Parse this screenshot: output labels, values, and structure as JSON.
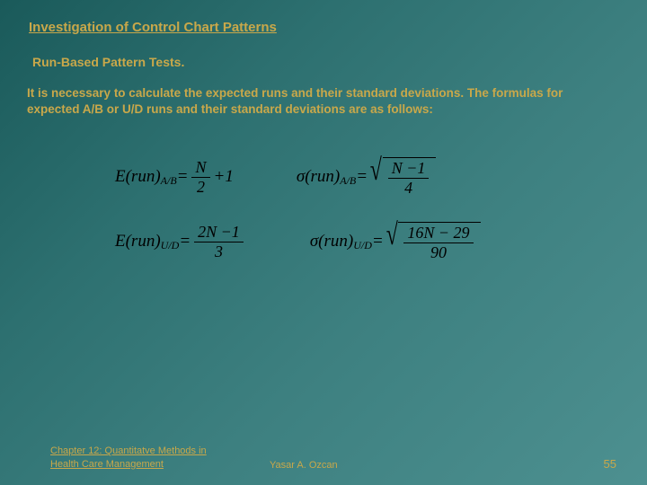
{
  "title": "Investigation of Control Chart Patterns",
  "subtitle": "Run-Based Pattern Tests.",
  "body": "It is necessary to calculate the expected runs and their standard deviations.  The formulas for expected A/B or U/D runs and their standard deviations are as follows:",
  "formulas": {
    "erun_ab_lhs": "E(run)",
    "sub_ab": "A/B",
    "eq": " = ",
    "N": "N",
    "two": "2",
    "plus1": " +1",
    "sigma_run": "σ(run)",
    "nminus1": "N −1",
    "four": "4",
    "erun_ud_lhs": "E(run)",
    "sub_ud": "U/D",
    "twoN_1": "2N −1",
    "three": "3",
    "sixteenN_29": "16N − 29",
    "ninety": "90"
  },
  "footer": {
    "chapter": "Chapter 12: Quantitatve Methods in Health Care Management",
    "author": "Yasar A. Ozcan",
    "page": "55"
  },
  "colors": {
    "accent": "#c9a84a",
    "bg_start": "#1a5a5a",
    "bg_end": "#4d9090"
  }
}
